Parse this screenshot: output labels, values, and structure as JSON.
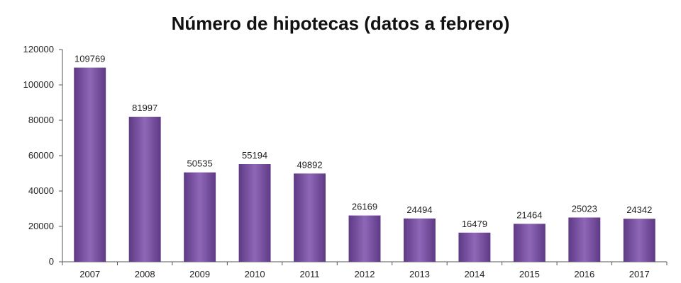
{
  "chart_data": {
    "type": "bar",
    "title": "Número de hipotecas (datos a febrero)",
    "categories": [
      "2007",
      "2008",
      "2009",
      "2010",
      "2011",
      "2012",
      "2013",
      "2014",
      "2015",
      "2016",
      "2017"
    ],
    "values": [
      109769,
      81997,
      50535,
      55194,
      49892,
      26169,
      24494,
      16479,
      21464,
      25023,
      24342
    ],
    "data_labels": [
      "109769",
      "81997",
      "50535",
      "55194",
      "49892",
      "26169",
      "24494",
      "16479",
      "21464",
      "25023",
      "24342"
    ],
    "ylim": [
      0,
      120000
    ],
    "yticks": [
      "0",
      "20000",
      "40000",
      "60000",
      "80000",
      "100000",
      "120000"
    ],
    "grid": false,
    "legend": "none",
    "colors": {
      "bar": "#7a4fa3",
      "bar_light": "#8f67b8",
      "bar_dark": "#5e3a85",
      "axis": "#555555"
    }
  }
}
